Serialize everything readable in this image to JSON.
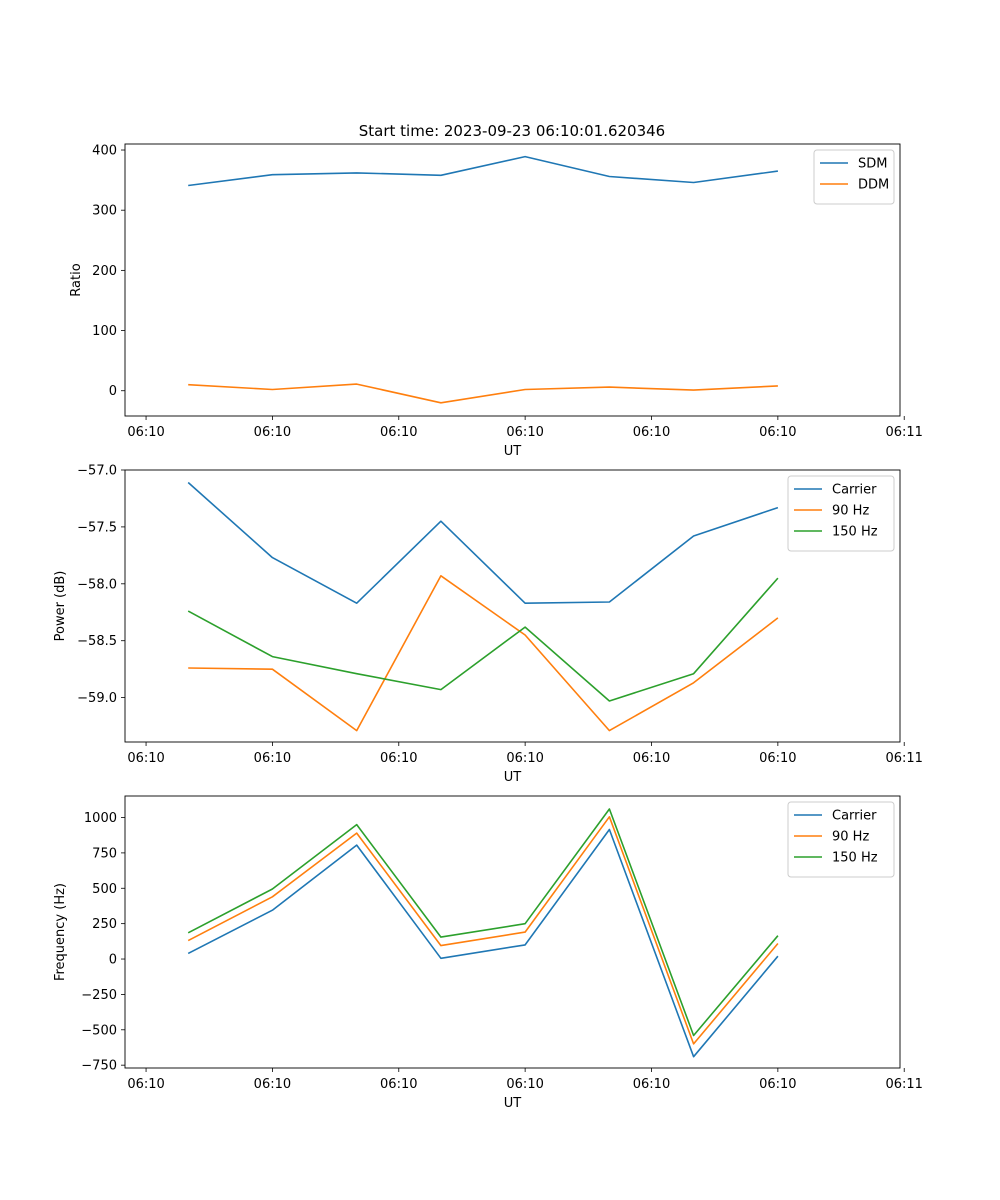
{
  "figure_title": "Start time: 2023-09-23 06:10:01.620346",
  "chart_data": [
    {
      "type": "line",
      "title": "Start time: 2023-09-23 06:10:01.620346",
      "xlabel": "UT",
      "ylabel": "Ratio",
      "x_index": [
        0,
        1,
        2,
        3,
        4,
        5,
        6,
        7
      ],
      "xlim": [
        -0.75,
        8.45
      ],
      "ylim": [
        -42,
        410
      ],
      "yticks": [
        0,
        100,
        200,
        300,
        400
      ],
      "ytick_labels": [
        "0",
        "100",
        "200",
        "300",
        "400"
      ],
      "xtick_positions": [
        -0.5,
        1.0,
        2.5,
        4.0,
        5.5,
        7.0,
        8.5
      ],
      "xtick_labels": [
        "06:10",
        "06:10",
        "06:10",
        "06:10",
        "06:10",
        "06:10",
        "06:11"
      ],
      "legend": "top-right",
      "series": [
        {
          "name": "SDM",
          "color": "#1f77b4",
          "values": [
            341,
            359,
            362,
            358,
            389,
            356,
            346,
            365
          ]
        },
        {
          "name": "DDM",
          "color": "#ff7f0e",
          "values": [
            10,
            2,
            11,
            -20,
            2,
            6,
            1,
            8
          ]
        }
      ]
    },
    {
      "type": "line",
      "title": "",
      "xlabel": "UT",
      "ylabel": "Power (dB)",
      "x_index": [
        0,
        1,
        2,
        3,
        4,
        5,
        6,
        7
      ],
      "xlim": [
        -0.75,
        8.45
      ],
      "ylim": [
        -59.39,
        -57.0
      ],
      "yticks": [
        -57.0,
        -57.5,
        -58.0,
        -58.5,
        -59.0
      ],
      "ytick_labels": [
        "−57.0",
        "−57.5",
        "−58.0",
        "−58.5",
        "−59.0"
      ],
      "xtick_positions": [
        -0.5,
        1.0,
        2.5,
        4.0,
        5.5,
        7.0,
        8.5
      ],
      "xtick_labels": [
        "06:10",
        "06:10",
        "06:10",
        "06:10",
        "06:10",
        "06:10",
        "06:11"
      ],
      "legend": "top-right",
      "series": [
        {
          "name": "Carrier",
          "color": "#1f77b4",
          "values": [
            -57.11,
            -57.77,
            -58.17,
            -57.45,
            -58.17,
            -58.16,
            -57.58,
            -57.33
          ]
        },
        {
          "name": "90 Hz",
          "color": "#ff7f0e",
          "values": [
            -58.74,
            -58.75,
            -59.29,
            -57.93,
            -58.45,
            -59.29,
            -58.87,
            -58.3
          ]
        },
        {
          "name": "150 Hz",
          "color": "#2ca02c",
          "values": [
            -58.24,
            -58.64,
            -58.79,
            -58.93,
            -58.38,
            -59.03,
            -58.79,
            -57.95
          ]
        }
      ]
    },
    {
      "type": "line",
      "title": "",
      "xlabel": "UT",
      "ylabel": "Frequency (Hz)",
      "x_index": [
        0,
        1,
        2,
        3,
        4,
        5,
        6,
        7
      ],
      "xlim": [
        -0.75,
        8.45
      ],
      "ylim": [
        -770,
        1152
      ],
      "yticks": [
        1000,
        750,
        500,
        250,
        0,
        -250,
        -500,
        -750
      ],
      "ytick_labels": [
        "1000",
        "750",
        "500",
        "250",
        "0",
        "−250",
        "−500",
        "−750"
      ],
      "xtick_positions": [
        -0.5,
        1.0,
        2.5,
        4.0,
        5.5,
        7.0,
        8.5
      ],
      "xtick_labels": [
        "06:10",
        "06:10",
        "06:10",
        "06:10",
        "06:10",
        "06:10",
        "06:11"
      ],
      "legend": "top-right",
      "series": [
        {
          "name": "Carrier",
          "color": "#1f77b4",
          "values": [
            40,
            345,
            805,
            5,
            100,
            915,
            -690,
            20
          ]
        },
        {
          "name": "90 Hz",
          "color": "#ff7f0e",
          "values": [
            130,
            440,
            890,
            95,
            190,
            1005,
            -600,
            110
          ]
        },
        {
          "name": "150 Hz",
          "color": "#2ca02c",
          "values": [
            185,
            495,
            950,
            155,
            250,
            1060,
            -540,
            165
          ]
        }
      ]
    }
  ]
}
